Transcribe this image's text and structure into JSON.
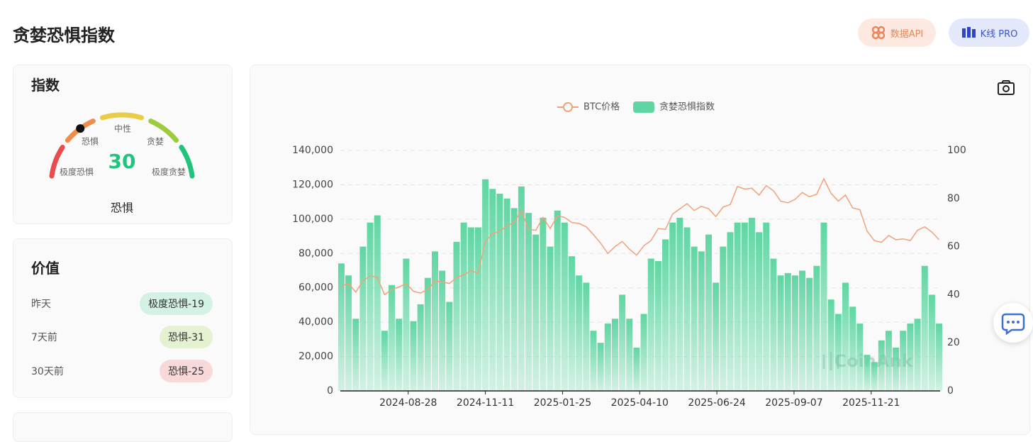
{
  "header": {
    "title": "贪婪恐惧指数",
    "buttons": [
      "数据API",
      "K线 PRO"
    ]
  },
  "gauge": {
    "title": "指数",
    "labels": [
      "极度恐惧",
      "恐惧",
      "中性",
      "贪婪",
      "极度贪婪"
    ],
    "value": 30,
    "status": "恐惧"
  },
  "history": {
    "title": "价值",
    "rows": [
      {
        "label": "昨天",
        "value": "极度恐惧-19"
      },
      {
        "label": "7天前",
        "value": "恐惧-31"
      },
      {
        "label": "30天前",
        "value": "恐惧-25"
      }
    ]
  },
  "watermark": "CoinAnk",
  "chart_data": {
    "type": "bar-line",
    "x": [
      "2024-06-24",
      "2024-07-01",
      "2024-07-08",
      "2024-07-15",
      "2024-07-22",
      "2024-07-29",
      "2024-08-05",
      "2024-08-12",
      "2024-08-19",
      "2024-08-26",
      "2024-09-02",
      "2024-09-09",
      "2024-09-16",
      "2024-09-23",
      "2024-09-30",
      "2024-10-07",
      "2024-10-14",
      "2024-10-21",
      "2024-10-28",
      "2024-11-04",
      "2024-11-11",
      "2024-11-18",
      "2024-11-25",
      "2024-12-02",
      "2024-12-09",
      "2024-12-16",
      "2024-12-23",
      "2024-12-30",
      "2025-01-06",
      "2025-01-13",
      "2025-01-20",
      "2025-01-27",
      "2025-02-03",
      "2025-02-10",
      "2025-02-17",
      "2025-02-24",
      "2025-03-03",
      "2025-03-10",
      "2025-03-17",
      "2025-03-24",
      "2025-03-31",
      "2025-04-07",
      "2025-04-14",
      "2025-04-21",
      "2025-04-28",
      "2025-05-05",
      "2025-05-12",
      "2025-05-19",
      "2025-05-26",
      "2025-06-02",
      "2025-06-09",
      "2025-06-16",
      "2025-06-23",
      "2025-06-30",
      "2025-07-07",
      "2025-07-14",
      "2025-07-21",
      "2025-07-28",
      "2025-08-04",
      "2025-08-11",
      "2025-08-18",
      "2025-08-25",
      "2025-09-01",
      "2025-09-08",
      "2025-09-15",
      "2025-09-22",
      "2025-09-29",
      "2025-10-06",
      "2025-10-13",
      "2025-10-20",
      "2025-10-27",
      "2025-11-03",
      "2025-11-10",
      "2025-11-17",
      "2025-11-24",
      "2025-12-01",
      "2025-12-08",
      "2025-12-15",
      "2025-12-22",
      "2025-12-29",
      "2026-01-05",
      "2026-01-12",
      "2026-01-19",
      "2026-01-26"
    ],
    "series": [
      {
        "name": "BTC价格",
        "type": "line",
        "color": "#f0a27a",
        "values": [
          61000,
          62500,
          57500,
          64000,
          67000,
          66000,
          56000,
          59000,
          60500,
          62500,
          58000,
          57000,
          59000,
          64000,
          63500,
          62500,
          66000,
          67500,
          70000,
          68500,
          87000,
          91500,
          93000,
          96000,
          98000,
          105000,
          94000,
          93500,
          101000,
          94500,
          102000,
          101000,
          98000,
          97500,
          95500,
          91000,
          86000,
          80000,
          84000,
          87000,
          82500,
          79000,
          84500,
          87500,
          94500,
          94000,
          103000,
          106000,
          109000,
          105000,
          107500,
          106000,
          101500,
          107000,
          108500,
          119000,
          117500,
          118000,
          114000,
          119500,
          116500,
          110500,
          109500,
          111500,
          115500,
          113000,
          114500,
          123500,
          115000,
          110500,
          114000,
          106500,
          105500,
          93000,
          87500,
          86500,
          90500,
          88000,
          88500,
          87500,
          93500,
          95500,
          92500,
          88000
        ]
      },
      {
        "name": "贪婪恐惧指数",
        "type": "bar",
        "axis": "y2",
        "color": "#5fd6a2",
        "values": [
          53,
          48,
          30,
          60,
          70,
          73,
          25,
          44,
          30,
          55,
          29,
          36,
          47,
          58,
          50,
          37,
          62,
          70,
          68,
          68,
          88,
          84,
          82,
          80,
          76,
          85,
          74,
          65,
          72,
          60,
          75,
          70,
          56,
          48,
          45,
          25,
          20,
          28,
          30,
          40,
          30,
          18,
          32,
          55,
          54,
          63,
          70,
          72,
          68,
          60,
          58,
          65,
          45,
          60,
          66,
          70,
          70,
          72,
          66,
          70,
          55,
          48,
          49,
          48,
          50,
          47,
          52,
          70,
          38,
          32,
          45,
          35,
          28,
          15,
          12,
          21,
          25,
          18,
          25,
          28,
          30,
          52,
          40,
          28
        ]
      }
    ],
    "xlim": [
      "2024-06-23",
      "2026-01-27"
    ],
    "xticks": [
      "2024-08-28",
      "2024-11-11",
      "2025-01-25",
      "2025-04-10",
      "2025-06-24",
      "2025-09-07",
      "2025-11-21"
    ],
    "ylim": [
      0,
      140000
    ],
    "yticks": [
      0,
      {
        "value": 20000,
        "label": "20,000"
      },
      {
        "value": 40000,
        "label": "40,000"
      },
      {
        "value": 60000,
        "label": "60,000"
      },
      {
        "value": 80000,
        "label": "80,000"
      },
      {
        "value": 100000,
        "label": "100,000"
      },
      {
        "value": 120000,
        "label": "120,000"
      },
      {
        "value": 140000,
        "label": "140,000"
      }
    ],
    "y2lim": [
      0,
      100
    ],
    "y2ticks": [
      0,
      20,
      40,
      60,
      80,
      100
    ],
    "grid": true
  }
}
